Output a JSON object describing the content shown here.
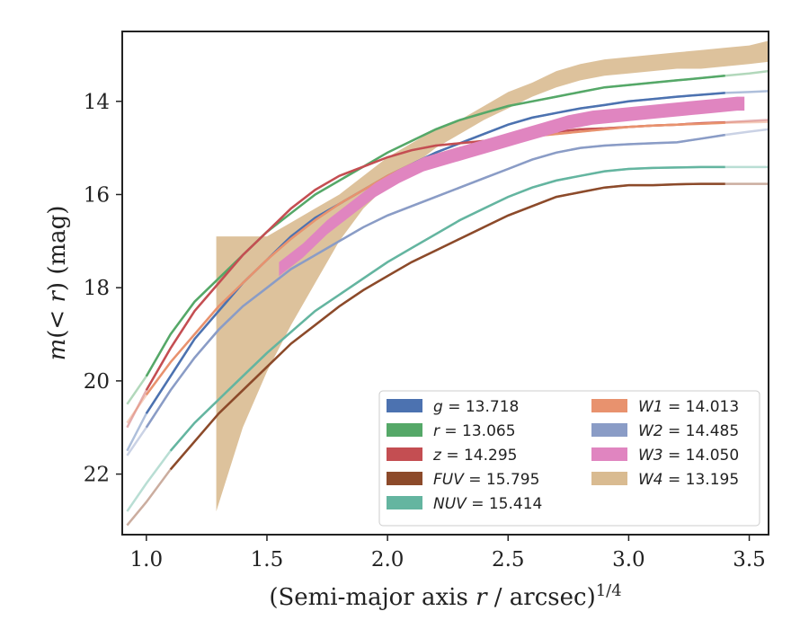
{
  "chart_data": {
    "type": "line",
    "title": "",
    "xlabel_main": "(Semi-major axis ",
    "xlabel_var": "r",
    "xlabel_tail": " / arcsec)",
    "xlabel_exp": "1/4",
    "ylabel_pre": "m",
    "ylabel_mid": "(< ",
    "ylabel_var": "r",
    "ylabel_post": ") (mag)",
    "xlim": [
      0.9,
      3.58
    ],
    "ylim": [
      23.3,
      12.5
    ],
    "y_inverted": true,
    "xticks": [
      1.0,
      1.5,
      2.0,
      2.5,
      3.0,
      3.5
    ],
    "xtick_labels": [
      "1.0",
      "1.5",
      "2.0",
      "2.5",
      "3.0",
      "3.5"
    ],
    "yticks": [
      14,
      16,
      18,
      20,
      22
    ],
    "ytick_labels": [
      "14",
      "16",
      "18",
      "20",
      "22"
    ],
    "grid": false,
    "legend_position": "lower-right",
    "series": [
      {
        "name": "g",
        "value": "13.718",
        "color": "#4c72b0",
        "legend_col": 0,
        "legend_row": 0,
        "x": [
          0.92,
          1.0,
          1.1,
          1.2,
          1.3,
          1.4,
          1.5,
          1.6,
          1.7,
          1.8,
          1.9,
          2.0,
          2.1,
          2.2,
          2.3,
          2.4,
          2.5,
          2.6,
          2.7,
          2.8,
          2.9,
          3.0,
          3.1,
          3.2,
          3.3,
          3.4,
          3.5,
          3.58
        ],
        "y": [
          21.5,
          20.7,
          19.9,
          19.1,
          18.5,
          17.9,
          17.4,
          16.9,
          16.5,
          16.2,
          15.9,
          15.6,
          15.35,
          15.1,
          14.9,
          14.7,
          14.5,
          14.35,
          14.25,
          14.15,
          14.08,
          14.0,
          13.95,
          13.9,
          13.86,
          13.82,
          13.8,
          13.78
        ]
      },
      {
        "name": "r",
        "value": "13.065",
        "color": "#55a868",
        "legend_col": 0,
        "legend_row": 1,
        "x": [
          0.92,
          1.0,
          1.1,
          1.2,
          1.3,
          1.4,
          1.5,
          1.6,
          1.7,
          1.8,
          1.9,
          2.0,
          2.1,
          2.2,
          2.3,
          2.4,
          2.5,
          2.6,
          2.7,
          2.8,
          2.9,
          3.0,
          3.1,
          3.2,
          3.3,
          3.4,
          3.5,
          3.58
        ],
        "y": [
          20.5,
          19.9,
          19.0,
          18.3,
          17.8,
          17.3,
          16.8,
          16.4,
          16.0,
          15.7,
          15.4,
          15.1,
          14.85,
          14.6,
          14.4,
          14.25,
          14.1,
          14.0,
          13.9,
          13.8,
          13.7,
          13.65,
          13.6,
          13.55,
          13.5,
          13.45,
          13.4,
          13.35
        ]
      },
      {
        "name": "z",
        "value": "14.295",
        "color": "#c44e52",
        "legend_col": 0,
        "legend_row": 2,
        "x": [
          0.92,
          1.0,
          1.1,
          1.2,
          1.3,
          1.4,
          1.5,
          1.6,
          1.7,
          1.8,
          1.9,
          2.0,
          2.1,
          2.2,
          2.3,
          2.4,
          2.5,
          2.6,
          2.7,
          2.8,
          2.9,
          3.0,
          3.1,
          3.2,
          3.3,
          3.4,
          3.5,
          3.58
        ],
        "y": [
          21.0,
          20.2,
          19.3,
          18.5,
          17.9,
          17.3,
          16.8,
          16.3,
          15.9,
          15.6,
          15.4,
          15.2,
          15.05,
          14.95,
          14.9,
          14.85,
          14.8,
          14.7,
          14.65,
          14.6,
          14.58,
          14.55,
          14.52,
          14.5,
          14.47,
          14.45,
          14.42,
          14.4
        ]
      },
      {
        "name": "FUV",
        "value": "15.795",
        "color": "#8c4a2a",
        "legend_col": 0,
        "legend_row": 3,
        "x": [
          0.92,
          1.0,
          1.1,
          1.2,
          1.3,
          1.4,
          1.5,
          1.6,
          1.7,
          1.8,
          1.9,
          2.0,
          2.1,
          2.2,
          2.3,
          2.4,
          2.5,
          2.6,
          2.7,
          2.8,
          2.9,
          3.0,
          3.1,
          3.2,
          3.3,
          3.4,
          3.5,
          3.58
        ],
        "y": [
          23.1,
          22.6,
          21.9,
          21.3,
          20.7,
          20.2,
          19.7,
          19.2,
          18.8,
          18.4,
          18.05,
          17.75,
          17.45,
          17.2,
          16.95,
          16.7,
          16.45,
          16.25,
          16.05,
          15.95,
          15.85,
          15.8,
          15.8,
          15.78,
          15.77,
          15.77,
          15.77,
          15.77
        ]
      },
      {
        "name": "NUV",
        "value": "15.414",
        "color": "#64b5a0",
        "legend_col": 0,
        "legend_row": 4,
        "x": [
          0.92,
          1.0,
          1.1,
          1.2,
          1.3,
          1.4,
          1.5,
          1.6,
          1.7,
          1.8,
          1.9,
          2.0,
          2.1,
          2.2,
          2.3,
          2.4,
          2.5,
          2.6,
          2.7,
          2.8,
          2.9,
          3.0,
          3.1,
          3.2,
          3.3,
          3.4,
          3.5,
          3.58
        ],
        "y": [
          22.8,
          22.2,
          21.5,
          20.9,
          20.4,
          19.9,
          19.4,
          18.95,
          18.5,
          18.15,
          17.8,
          17.45,
          17.15,
          16.85,
          16.55,
          16.3,
          16.05,
          15.85,
          15.7,
          15.6,
          15.5,
          15.45,
          15.43,
          15.42,
          15.41,
          15.41,
          15.41,
          15.41
        ]
      },
      {
        "name": "W1",
        "value": "14.013",
        "color": "#e8926e",
        "legend_col": 1,
        "legend_row": 0,
        "x": [
          0.92,
          1.0,
          1.1,
          1.2,
          1.3,
          1.4,
          1.5,
          1.6,
          1.7,
          1.8,
          1.9,
          2.0,
          2.1,
          2.2,
          2.3,
          2.4,
          2.5,
          2.6,
          2.7,
          2.8,
          2.9,
          3.0,
          3.1,
          3.2,
          3.3,
          3.4,
          3.5,
          3.58
        ],
        "y": [
          20.9,
          20.3,
          19.6,
          19.0,
          18.4,
          17.9,
          17.4,
          16.95,
          16.55,
          16.2,
          15.9,
          15.6,
          15.35,
          15.15,
          15.0,
          14.9,
          14.82,
          14.75,
          14.7,
          14.65,
          14.6,
          14.55,
          14.52,
          14.5,
          14.48,
          14.46,
          14.45,
          14.44
        ]
      },
      {
        "name": "W2",
        "value": "14.485",
        "color": "#8a9cc6",
        "legend_col": 1,
        "legend_row": 1,
        "x": [
          0.92,
          1.0,
          1.1,
          1.2,
          1.3,
          1.4,
          1.5,
          1.6,
          1.7,
          1.8,
          1.9,
          2.0,
          2.1,
          2.2,
          2.3,
          2.4,
          2.5,
          2.6,
          2.7,
          2.8,
          2.9,
          3.0,
          3.1,
          3.2,
          3.3,
          3.4,
          3.5,
          3.58
        ],
        "y": [
          21.6,
          21.0,
          20.2,
          19.5,
          18.9,
          18.4,
          18.0,
          17.6,
          17.3,
          17.0,
          16.7,
          16.45,
          16.25,
          16.05,
          15.85,
          15.65,
          15.45,
          15.25,
          15.1,
          15.0,
          14.95,
          14.92,
          14.9,
          14.88,
          14.8,
          14.72,
          14.65,
          14.6
        ]
      },
      {
        "name": "W3",
        "value": "14.050",
        "color": "#e085c0",
        "legend_col": 1,
        "legend_row": 2,
        "x": [
          1.55,
          1.65,
          1.75,
          1.85,
          1.95,
          2.05,
          2.15,
          2.25,
          2.35,
          2.45,
          2.55,
          2.65,
          2.75,
          2.85,
          2.95,
          3.05,
          3.15,
          3.25,
          3.35,
          3.45,
          3.48
        ],
        "y": [
          17.6,
          17.2,
          16.7,
          16.3,
          15.9,
          15.6,
          15.35,
          15.2,
          15.05,
          14.9,
          14.75,
          14.6,
          14.45,
          14.35,
          14.3,
          14.25,
          14.2,
          14.15,
          14.1,
          14.05,
          14.05
        ],
        "band_width": 0.3
      },
      {
        "name": "W4",
        "value": "13.195",
        "color": "#d9bb91",
        "legend_col": 1,
        "legend_row": 3,
        "x": [
          1.29,
          1.4,
          1.5,
          1.6,
          1.7,
          1.8,
          1.9,
          2.0,
          2.1,
          2.2,
          2.3,
          2.4,
          2.5,
          2.6,
          2.7,
          2.8,
          2.9,
          3.0,
          3.1,
          3.2,
          3.3,
          3.4,
          3.5,
          3.58
        ],
        "y_lower": [
          22.8,
          21.0,
          19.8,
          18.8,
          17.9,
          17.0,
          16.3,
          15.8,
          15.4,
          15.0,
          14.7,
          14.4,
          14.15,
          13.9,
          13.7,
          13.55,
          13.45,
          13.4,
          13.35,
          13.3,
          13.3,
          13.25,
          13.2,
          13.15
        ],
        "y_upper": [
          16.9,
          16.9,
          16.9,
          16.6,
          16.3,
          16.0,
          15.6,
          15.2,
          14.9,
          14.6,
          14.4,
          14.1,
          13.8,
          13.6,
          13.35,
          13.2,
          13.1,
          13.05,
          13.0,
          12.95,
          12.9,
          12.85,
          12.8,
          12.7
        ]
      }
    ]
  }
}
